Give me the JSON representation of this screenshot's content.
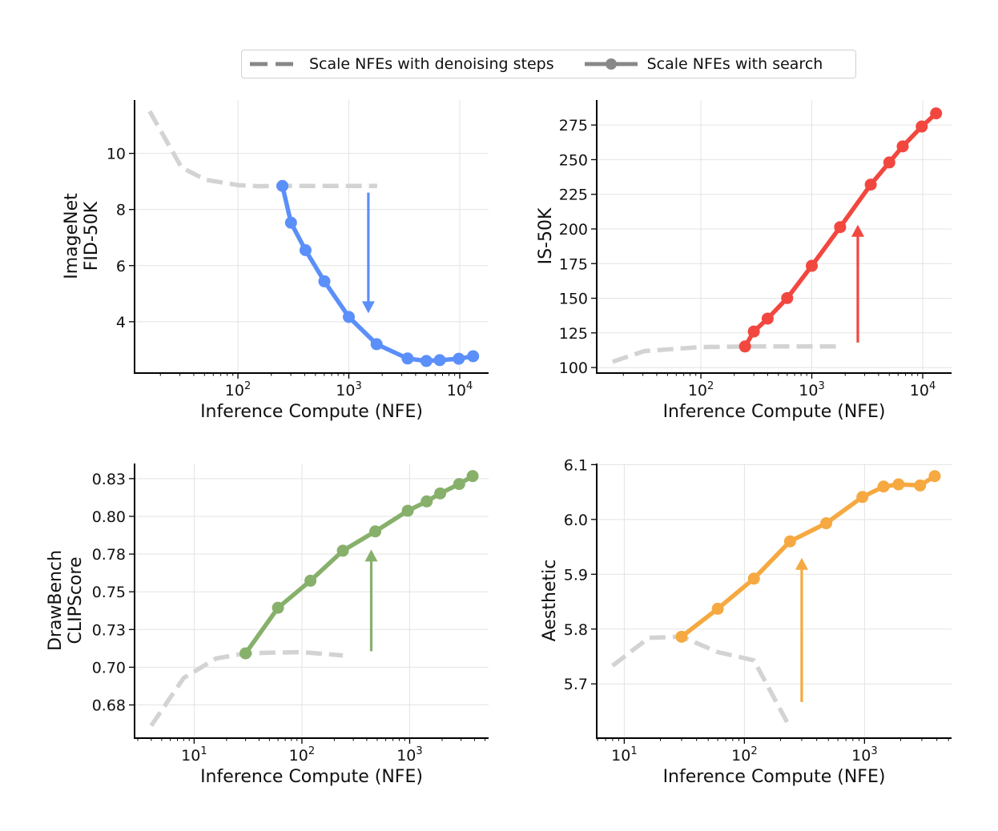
{
  "legend": {
    "items": [
      {
        "label": "Scale NFEs with denoising steps",
        "style": "dashed",
        "color": "#888888"
      },
      {
        "label": "Scale NFEs with search",
        "style": "solid-marker",
        "color": "#888888"
      }
    ],
    "placement": "top-center"
  },
  "colors": {
    "baseline": "#d3d3d3",
    "blue": "#5b8ff9",
    "red": "#f2473f",
    "green": "#87b06b",
    "orange": "#f5a940"
  },
  "chart_data": [
    {
      "type": "line",
      "ylabel": [
        "ImageNet",
        "FID-50K"
      ],
      "xlabel": "Inference Compute (NFE)",
      "xscale": "log",
      "xlim": [
        11.7,
        18200
      ],
      "ylim": [
        2.17,
        11.9
      ],
      "xticks": [
        100,
        1000,
        10000
      ],
      "xtick_labels": [
        [
          "10",
          "2"
        ],
        [
          "10",
          "3"
        ],
        [
          "10",
          "4"
        ]
      ],
      "yticks": [
        4,
        6,
        8,
        10
      ],
      "ytick_labels": [
        "4",
        "6",
        "8",
        "10"
      ],
      "grid": true,
      "color": "#5b8ff9",
      "series": [
        {
          "style": "dashed",
          "x": [
            16,
            31,
            51,
            100,
            155,
            250,
            500,
            1000,
            1800
          ],
          "y": [
            11.5,
            9.5,
            9.06,
            8.87,
            8.83,
            8.84,
            8.84,
            8.84,
            8.84
          ]
        },
        {
          "style": "solid-marker",
          "x": [
            252,
            301,
            407,
            602,
            1000,
            1780,
            3390,
            5000,
            6600,
            9800,
            13200
          ],
          "y": [
            8.84,
            7.53,
            6.55,
            5.44,
            4.17,
            3.2,
            2.69,
            2.6,
            2.63,
            2.68,
            2.77
          ]
        }
      ],
      "arrow": {
        "x": 1500,
        "y_from": 8.6,
        "y_to": 4.3
      }
    },
    {
      "type": "line",
      "ylabel": [
        "IS-50K"
      ],
      "xlabel": "Inference Compute (NFE)",
      "xscale": "log",
      "xlim": [
        11.5,
        18200
      ],
      "ylim": [
        96,
        293
      ],
      "xticks": [
        100,
        1000,
        10000
      ],
      "xtick_labels": [
        [
          "10",
          "2"
        ],
        [
          "10",
          "3"
        ],
        [
          "10",
          "4"
        ]
      ],
      "yticks": [
        100,
        125,
        150,
        175,
        200,
        225,
        250,
        275
      ],
      "ytick_labels": [
        "100",
        "125",
        "150",
        "175",
        "200",
        "225",
        "250",
        "275"
      ],
      "grid": true,
      "color": "#f2473f",
      "series": [
        {
          "style": "dashed",
          "x": [
            16,
            31,
            100,
            250,
            500,
            1000,
            1800
          ],
          "y": [
            104.2,
            111.9,
            114.8,
            115.2,
            115.2,
            115.2,
            115.2
          ]
        },
        {
          "style": "solid-marker",
          "x": [
            250,
            300,
            400,
            600,
            1000,
            1800,
            3400,
            5000,
            6600,
            9800,
            13200
          ],
          "y": [
            115.2,
            126,
            135.3,
            150.1,
            173.4,
            201.3,
            232,
            248,
            259.6,
            273.9,
            283.4
          ]
        }
      ],
      "arrow": {
        "x": 2600,
        "y_from": 118,
        "y_to": 203
      }
    },
    {
      "type": "line",
      "ylabel": [
        "DrawBench",
        "CLIPScore"
      ],
      "xlabel": "Inference Compute (NFE)",
      "xscale": "log",
      "xlim": [
        2.8,
        5400
      ],
      "ylim": [
        0.653,
        0.835
      ],
      "xticks": [
        10,
        100,
        1000
      ],
      "xtick_labels": [
        [
          "10",
          "1"
        ],
        [
          "10",
          "2"
        ],
        [
          "10",
          "3"
        ]
      ],
      "yticks": [
        0.675,
        0.7,
        0.725,
        0.75,
        0.775,
        0.8,
        0.825
      ],
      "ytick_labels": [
        "0.68",
        "0.70",
        "0.73",
        "0.75",
        "0.78",
        "0.80",
        "0.83"
      ],
      "grid": true,
      "color": "#87b06b",
      "series": [
        {
          "style": "dashed",
          "x": [
            4,
            8,
            16,
            30,
            55,
            100,
            240
          ],
          "y": [
            0.6613,
            0.6929,
            0.7058,
            0.7092,
            0.7097,
            0.71,
            0.7078
          ]
        },
        {
          "style": "solid-marker",
          "x": [
            30,
            60,
            120,
            240,
            480,
            960,
            1440,
            1920,
            2880,
            3840
          ],
          "y": [
            0.7092,
            0.7394,
            0.7573,
            0.7772,
            0.79,
            0.8037,
            0.8099,
            0.8152,
            0.8214,
            0.8267
          ]
        }
      ],
      "arrow": {
        "x": 440,
        "y_from": 0.7106,
        "y_to": 0.778
      }
    },
    {
      "type": "line",
      "ylabel": [
        "Aesthetic"
      ],
      "xlabel": "Inference Compute (NFE)",
      "xscale": "log",
      "xlim": [
        5.9,
        5300
      ],
      "ylim": [
        5.601,
        6.102
      ],
      "xticks": [
        10,
        100,
        1000
      ],
      "xtick_labels": [
        [
          "10",
          "1"
        ],
        [
          "10",
          "2"
        ],
        [
          "10",
          "3"
        ]
      ],
      "yticks": [
        5.7,
        5.8,
        5.9,
        6.0,
        6.1
      ],
      "ytick_labels": [
        "5.7",
        "5.8",
        "5.9",
        "6.0",
        "6.1"
      ],
      "grid": true,
      "color": "#f5a940",
      "series": [
        {
          "style": "dashed",
          "x": [
            8,
            16,
            30,
            60,
            120,
            240
          ],
          "y": [
            5.733,
            5.784,
            5.786,
            5.758,
            5.743,
            5.62
          ]
        },
        {
          "style": "solid-marker",
          "x": [
            30,
            60,
            120,
            240,
            480,
            960,
            1440,
            1920,
            2900,
            3840
          ],
          "y": [
            5.786,
            5.837,
            5.892,
            5.96,
            5.993,
            6.041,
            6.06,
            6.064,
            6.062,
            6.079
          ]
        }
      ],
      "arrow": {
        "x": 300,
        "y_from": 5.667,
        "y_to": 5.93
      }
    }
  ]
}
